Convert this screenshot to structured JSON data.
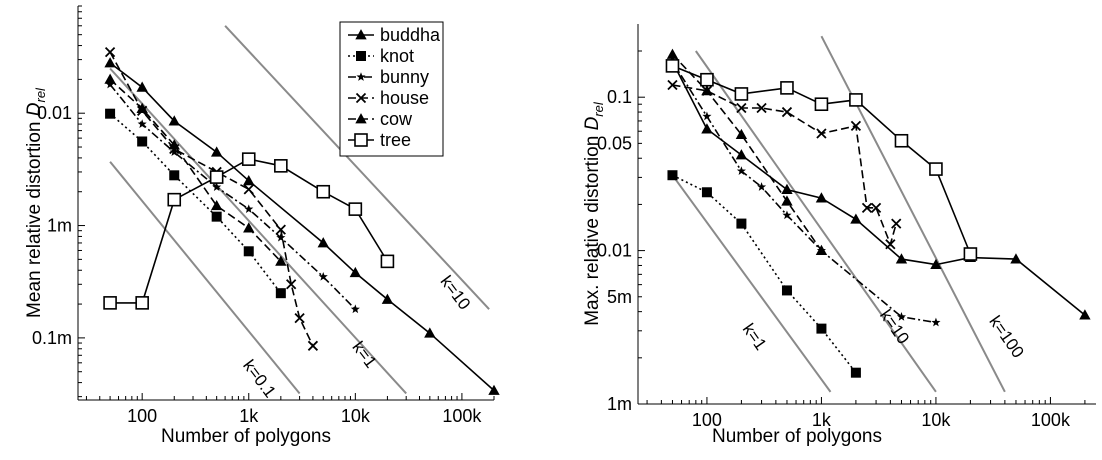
{
  "chart_data": [
    {
      "type": "line",
      "x_scale": "log",
      "y_scale": "log",
      "xlabel": "Number of polygons",
      "ylabel": "Mean relative distortion D_rel",
      "ylabel_main": "Mean relative distortion ",
      "ylabel_var": "D",
      "ylabel_sub": "rel",
      "xlim": [
        25,
        200000
      ],
      "ylim": [
        2.8e-05,
        0.09
      ],
      "x_ticks": [
        {
          "v": 100,
          "label": "100"
        },
        {
          "v": 1000,
          "label": "1k"
        },
        {
          "v": 10000,
          "label": "10k"
        },
        {
          "v": 100000,
          "label": "100k"
        }
      ],
      "y_ticks": [
        {
          "v": 0.0001,
          "label": "0.1m"
        },
        {
          "v": 0.001,
          "label": "1m"
        },
        {
          "v": 0.01,
          "label": "0.01"
        }
      ],
      "legend": "top-right",
      "legend_entries": [
        "buddha",
        "knot",
        "bunny",
        "house",
        "cow",
        "tree"
      ],
      "reference_lines": [
        {
          "label": "k=0.1",
          "points": [
            [
              50,
              0.0037
            ],
            [
              3000,
              3.2e-05
            ]
          ]
        },
        {
          "label": "k=1",
          "points": [
            [
              50,
              0.025
            ],
            [
              30000,
              3.2e-05
            ]
          ]
        },
        {
          "label": "k=10",
          "points": [
            [
              600,
              0.06
            ],
            [
              180000,
              0.00018
            ]
          ]
        }
      ],
      "series": [
        {
          "name": "buddha",
          "marker": "triangle",
          "dash": "solid",
          "points": [
            [
              50,
              0.028
            ],
            [
              100,
              0.017
            ],
            [
              200,
              0.0085
            ],
            [
              500,
              0.0045
            ],
            [
              1000,
              0.0025
            ],
            [
              5000,
              0.0007
            ],
            [
              10000,
              0.00038
            ],
            [
              20000,
              0.00022
            ],
            [
              50000,
              0.00011
            ],
            [
              200000,
              3.4e-05
            ]
          ]
        },
        {
          "name": "knot",
          "marker": "square-filled",
          "dash": "dotted",
          "points": [
            [
              50,
              0.0099
            ],
            [
              100,
              0.0056
            ],
            [
              200,
              0.0028
            ],
            [
              500,
              0.0012
            ],
            [
              1000,
              0.00059
            ],
            [
              2000,
              0.00025
            ]
          ]
        },
        {
          "name": "bunny",
          "marker": "star",
          "dash": "dashdot",
          "points": [
            [
              50,
              0.018
            ],
            [
              100,
              0.008
            ],
            [
              200,
              0.0045
            ],
            [
              500,
              0.0022
            ],
            [
              1000,
              0.0014
            ],
            [
              2000,
              0.00078
            ],
            [
              5000,
              0.00035
            ],
            [
              10000,
              0.00018
            ]
          ]
        },
        {
          "name": "house",
          "marker": "x",
          "dash": "dashed",
          "points": [
            [
              50,
              0.035
            ],
            [
              100,
              0.0105
            ],
            [
              200,
              0.0048
            ],
            [
              500,
              0.003
            ],
            [
              1000,
              0.0021
            ],
            [
              2000,
              0.00092
            ],
            [
              2500,
              0.0003
            ],
            [
              3000,
              0.00015
            ],
            [
              4000,
              8.5e-05
            ]
          ]
        },
        {
          "name": "cow",
          "marker": "triangle",
          "dash": "dashed",
          "points": [
            [
              50,
              0.02
            ],
            [
              100,
              0.011
            ],
            [
              200,
              0.0052
            ],
            [
              500,
              0.0015
            ],
            [
              1000,
              0.00095
            ],
            [
              2000,
              0.00048
            ]
          ]
        },
        {
          "name": "tree",
          "marker": "square-open",
          "dash": "solid",
          "points": [
            [
              50,
              0.000205
            ],
            [
              100,
              0.000205
            ],
            [
              200,
              0.0017
            ],
            [
              500,
              0.0027
            ],
            [
              1000,
              0.0039
            ],
            [
              2000,
              0.0034
            ],
            [
              5000,
              0.002
            ],
            [
              10000,
              0.0014
            ],
            [
              20000,
              0.00048
            ]
          ]
        }
      ]
    },
    {
      "type": "line",
      "x_scale": "log",
      "y_scale": "log",
      "xlabel": "Number of polygons",
      "ylabel": "Max. relative distortion D_rel",
      "ylabel_main": "Max. relative distortion ",
      "ylabel_var": "D",
      "ylabel_sub": "rel",
      "xlim": [
        25,
        250000
      ],
      "ylim": [
        0.001,
        0.3
      ],
      "x_ticks": [
        {
          "v": 100,
          "label": "100"
        },
        {
          "v": 1000,
          "label": "1k"
        },
        {
          "v": 10000,
          "label": "10k"
        },
        {
          "v": 100000,
          "label": "100k"
        }
      ],
      "y_ticks": [
        {
          "v": 0.001,
          "label": "1m"
        },
        {
          "v": 0.005,
          "label": "5m"
        },
        {
          "v": 0.01,
          "label": "0.01"
        },
        {
          "v": 0.05,
          "label": "0.05"
        },
        {
          "v": 0.1,
          "label": "0.1"
        }
      ],
      "reference_lines": [
        {
          "label": "k=1",
          "points": [
            [
              50,
              0.031
            ],
            [
              1200,
              0.0012
            ]
          ]
        },
        {
          "label": "k=10",
          "points": [
            [
              80,
              0.2
            ],
            [
              10000,
              0.0012
            ]
          ]
        },
        {
          "label": "k=100",
          "points": [
            [
              1000,
              0.25
            ],
            [
              40000,
              0.0012
            ]
          ]
        }
      ],
      "series": [
        {
          "name": "buddha",
          "marker": "triangle",
          "dash": "solid",
          "points": [
            [
              50,
              0.17
            ],
            [
              100,
              0.062
            ],
            [
              200,
              0.042
            ],
            [
              500,
              0.025
            ],
            [
              1000,
              0.022
            ],
            [
              2000,
              0.016
            ],
            [
              5000,
              0.0088
            ],
            [
              10000,
              0.0081
            ],
            [
              20000,
              0.009
            ],
            [
              50000,
              0.0088
            ],
            [
              200000,
              0.0038
            ]
          ]
        },
        {
          "name": "knot",
          "marker": "square-filled",
          "dash": "dotted",
          "points": [
            [
              50,
              0.031
            ],
            [
              100,
              0.024
            ],
            [
              200,
              0.015
            ],
            [
              500,
              0.0055
            ],
            [
              1000,
              0.0031
            ],
            [
              2000,
              0.0016
            ]
          ]
        },
        {
          "name": "bunny",
          "marker": "star",
          "dash": "dashdot",
          "points": [
            [
              50,
              0.17
            ],
            [
              100,
              0.075
            ],
            [
              200,
              0.033
            ],
            [
              300,
              0.026
            ],
            [
              500,
              0.017
            ],
            [
              1000,
              0.01
            ],
            [
              5000,
              0.0037
            ],
            [
              10000,
              0.0034
            ]
          ]
        },
        {
          "name": "house",
          "marker": "x",
          "dash": "dashed",
          "points": [
            [
              50,
              0.12
            ],
            [
              100,
              0.11
            ],
            [
              200,
              0.085
            ],
            [
              300,
              0.085
            ],
            [
              500,
              0.08
            ],
            [
              1000,
              0.058
            ],
            [
              2000,
              0.065
            ],
            [
              2500,
              0.019
            ],
            [
              3000,
              0.019
            ],
            [
              4000,
              0.011
            ],
            [
              4500,
              0.015
            ]
          ]
        },
        {
          "name": "cow",
          "marker": "triangle",
          "dash": "dashed",
          "points": [
            [
              50,
              0.19
            ],
            [
              100,
              0.11
            ],
            [
              200,
              0.057
            ],
            [
              500,
              0.021
            ],
            [
              1000,
              0.01
            ]
          ]
        },
        {
          "name": "tree",
          "marker": "square-open",
          "dash": "solid",
          "points": [
            [
              50,
              0.16
            ],
            [
              100,
              0.13
            ],
            [
              200,
              0.105
            ],
            [
              500,
              0.115
            ],
            [
              1000,
              0.09
            ],
            [
              2000,
              0.096
            ],
            [
              5000,
              0.052
            ],
            [
              10000,
              0.034
            ],
            [
              20000,
              0.0095
            ]
          ]
        }
      ]
    }
  ]
}
